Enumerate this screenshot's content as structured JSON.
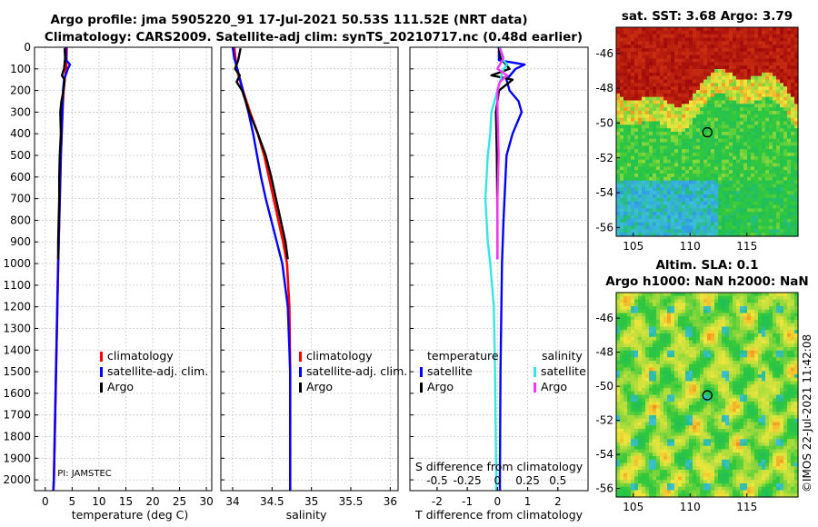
{
  "header": {
    "title_line1": "Argo profile: jma 5905220_91 17-Jul-2021 50.53S 111.52E (NRT data)",
    "title_line2": "Climatology: CARS2009. Satellite-adj clim: synTS_20210717.nc (0.48d earlier)"
  },
  "colors": {
    "climatology": "#ff0000",
    "satellite": "#0000ff",
    "argo": "#000000",
    "sat_salinity": "#33e6e6",
    "argo_salinity": "#ff33ff"
  },
  "chart_data": [
    {
      "type": "line",
      "name": "temperature",
      "xlabel": "temperature (deg C)",
      "xlim": [
        -2,
        31
      ],
      "xticks": [
        0,
        5,
        10,
        15,
        20,
        25,
        30
      ],
      "xtick_labels": [
        "0",
        "5",
        "10",
        "15",
        "20",
        "25",
        "30"
      ],
      "ylim": [
        0,
        2050
      ],
      "yticks": [
        0,
        100,
        200,
        300,
        400,
        500,
        600,
        700,
        800,
        900,
        1000,
        1100,
        1200,
        1300,
        1400,
        1500,
        1600,
        1700,
        1800,
        1900,
        2000
      ],
      "ytick_labels": [
        "0",
        "100",
        "200",
        "300",
        "400",
        "500",
        "600",
        "700",
        "800",
        "900",
        "1000",
        "1100",
        "1200",
        "1300",
        "1400",
        "1500",
        "1600",
        "1700",
        "1800",
        "1900",
        "2000"
      ],
      "legend": [
        "climatology",
        "satellite-adj. clim.",
        "Argo"
      ],
      "note": "PI: JAMSTEC",
      "series": [
        {
          "name": "climatology",
          "color": "#ff0000",
          "depth": [
            0,
            100,
            150,
            200,
            300,
            500,
            800,
            1000,
            1500,
            2000,
            2050
          ],
          "values": [
            4.0,
            3.9,
            3.6,
            3.4,
            3.2,
            2.9,
            2.6,
            2.4,
            2.0,
            1.6,
            1.5
          ]
        },
        {
          "name": "satellite-adj. clim.",
          "color": "#0000ff",
          "depth": [
            0,
            60,
            80,
            100,
            150,
            200,
            300,
            500,
            800,
            1000,
            1500,
            2000,
            2050
          ],
          "values": [
            3.8,
            3.9,
            4.6,
            4.2,
            3.5,
            3.3,
            3.2,
            2.9,
            2.6,
            2.4,
            2.0,
            1.6,
            1.5
          ]
        },
        {
          "name": "Argo",
          "color": "#000000",
          "depth": [
            5,
            50,
            100,
            130,
            150,
            200,
            250,
            300,
            400,
            500,
            600,
            700,
            800,
            900,
            980
          ],
          "values": [
            3.6,
            3.7,
            3.5,
            3.1,
            3.6,
            3.4,
            3.0,
            2.8,
            2.9,
            2.7,
            2.6,
            2.6,
            2.5,
            2.4,
            2.4
          ]
        }
      ]
    },
    {
      "type": "line",
      "name": "salinity",
      "xlabel": "salinity",
      "xlim": [
        33.85,
        36.1
      ],
      "xticks": [
        34,
        34.5,
        35,
        35.5,
        36
      ],
      "xtick_labels": [
        "34",
        "34.5",
        "35",
        "35.5",
        "36"
      ],
      "ylim": [
        0,
        2050
      ],
      "legend": [
        "climatology",
        "satellite-adj. clim.",
        "Argo"
      ],
      "series": [
        {
          "name": "climatology",
          "color": "#ff0000",
          "depth": [
            0,
            100,
            200,
            300,
            400,
            500,
            600,
            700,
            800,
            900,
            1000,
            1200,
            1500,
            2000,
            2050
          ],
          "values": [
            34.02,
            34.05,
            34.13,
            34.22,
            34.32,
            34.4,
            34.46,
            34.52,
            34.58,
            34.64,
            34.69,
            34.72,
            34.73,
            34.73,
            34.73
          ]
        },
        {
          "name": "satellite-adj. clim.",
          "color": "#0000ff",
          "depth": [
            0,
            50,
            100,
            200,
            300,
            400,
            500,
            600,
            700,
            800,
            900,
            1000,
            1200,
            1500,
            2000,
            2050
          ],
          "values": [
            34.0,
            34.02,
            34.06,
            34.13,
            34.2,
            34.26,
            34.31,
            34.36,
            34.42,
            34.49,
            34.56,
            34.63,
            34.7,
            34.73,
            34.73,
            34.73
          ]
        },
        {
          "name": "Argo",
          "color": "#000000",
          "depth": [
            5,
            60,
            100,
            130,
            160,
            200,
            300,
            400,
            500,
            600,
            700,
            800,
            900,
            980
          ],
          "values": [
            34.1,
            34.07,
            34.03,
            34.09,
            34.05,
            34.12,
            34.21,
            34.32,
            34.42,
            34.49,
            34.55,
            34.61,
            34.67,
            34.7
          ]
        }
      ]
    },
    {
      "type": "line",
      "name": "difference",
      "xlabel": "T difference from climatology",
      "xlabel_top": "S difference from climatology",
      "xlim": [
        -2.9,
        3.0
      ],
      "xticks": [
        -2,
        -1,
        0,
        1,
        2
      ],
      "xtick_labels": [
        "-2",
        "-1",
        "0",
        "1",
        "2"
      ],
      "top_ticks": [
        -0.5,
        -0.25,
        0,
        0.25,
        0.5
      ],
      "top_tick_labels": [
        "-0.5",
        "-0.25",
        "0",
        "0.25",
        "0.5"
      ],
      "ylim": [
        0,
        2050
      ],
      "legend_temperature": {
        "title": "temperature",
        "items": [
          "satellite",
          "Argo"
        ]
      },
      "legend_salinity": {
        "title": "salinity",
        "items": [
          "satellite",
          "Argo"
        ]
      },
      "series": [
        {
          "name": "T satellite",
          "color": "#0000ff",
          "depth": [
            0,
            60,
            80,
            100,
            150,
            200,
            250,
            300,
            400,
            500,
            800,
            1000,
            1500,
            2000,
            2050
          ],
          "values": [
            0.05,
            0.05,
            0.9,
            0.6,
            0.3,
            0.4,
            0.7,
            0.8,
            0.5,
            0.3,
            0.2,
            0.15,
            0.1,
            0.08,
            0.08
          ]
        },
        {
          "name": "T Argo",
          "color": "#000000",
          "depth": [
            5,
            50,
            100,
            130,
            150,
            200,
            300,
            500,
            800,
            980
          ],
          "values": [
            0.05,
            0.1,
            0.4,
            -0.2,
            0.5,
            0.05,
            -0.05,
            -0.02,
            0.0,
            0.0
          ]
        },
        {
          "name": "S satellite",
          "color": "#33e6e6",
          "depth": [
            0,
            60,
            80,
            100,
            200,
            300,
            400,
            500,
            600,
            700,
            800,
            900,
            1000,
            1200,
            1500,
            2000,
            2050
          ],
          "values": [
            0.02,
            0.05,
            0.08,
            0.05,
            0.0,
            -0.05,
            -0.06,
            -0.08,
            -0.09,
            -0.1,
            -0.09,
            -0.08,
            -0.06,
            -0.03,
            -0.02,
            -0.01,
            -0.01
          ]
        },
        {
          "name": "S Argo",
          "color": "#ff33ff",
          "depth": [
            5,
            50,
            100,
            130,
            160,
            200,
            300,
            500,
            700,
            900,
            980
          ],
          "values": [
            0.02,
            0.05,
            0.0,
            0.08,
            0.02,
            0.0,
            0.0,
            0.01,
            0.0,
            0.0,
            0.0
          ]
        }
      ]
    },
    {
      "type": "heatmap",
      "name": "sst_map",
      "title": "sat. SST: 3.68 Argo: 3.79",
      "xticks": [
        105,
        110,
        115
      ],
      "xtick_labels": [
        "105",
        "110",
        "115"
      ],
      "yticks": [
        -46,
        -48,
        -50,
        -52,
        -54,
        -56
      ],
      "ytick_labels": [
        "-46",
        "-48",
        "-50",
        "-52",
        "-54",
        "-56"
      ],
      "xlim": [
        103.5,
        119.5
      ],
      "ylim": [
        -56.5,
        -44.5
      ],
      "marker": {
        "lon": 111.52,
        "lat": -50.53
      }
    },
    {
      "type": "heatmap",
      "name": "sla_map",
      "title_line1": "Altim. SLA: 0.1",
      "title_line2": "Argo h1000: NaN h2000: NaN",
      "xticks": [
        105,
        110,
        115
      ],
      "xtick_labels": [
        "105",
        "110",
        "115"
      ],
      "yticks": [
        -46,
        -48,
        -50,
        -52,
        -54,
        -56
      ],
      "ytick_labels": [
        "-46",
        "-48",
        "-50",
        "-52",
        "-54",
        "-56"
      ],
      "xlim": [
        103.5,
        119.5
      ],
      "ylim": [
        -56.5,
        -44.5
      ],
      "marker": {
        "lon": 111.52,
        "lat": -50.53
      }
    }
  ],
  "footer": {
    "stamp": "©IMOS 22-Jul-2021 11:42:08"
  }
}
